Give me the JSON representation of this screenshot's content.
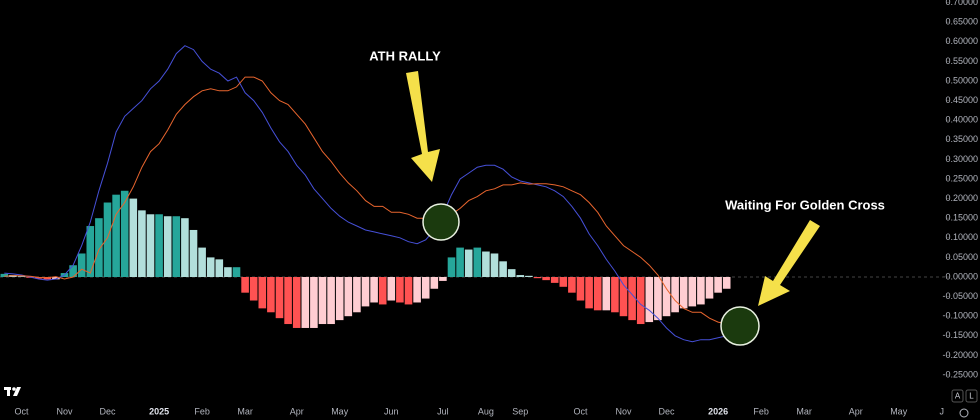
{
  "chart_data": {
    "type": "macd",
    "categories": [
      null,
      null,
      "Oct",
      null,
      null,
      null,
      null,
      "Nov",
      null,
      null,
      null,
      null,
      "Dec",
      null,
      null,
      null,
      null,
      null,
      "2025",
      null,
      null,
      null,
      null,
      "Feb",
      null,
      null,
      null,
      null,
      "Mar",
      null,
      null,
      null,
      null,
      null,
      "Apr",
      null,
      null,
      null,
      null,
      "May",
      null,
      null,
      null,
      null,
      null,
      "Jun",
      null,
      null,
      null,
      null,
      null,
      "Jul",
      null,
      null,
      null,
      null,
      "Aug",
      null,
      null,
      null,
      "Sep",
      null,
      null,
      null,
      null,
      null,
      null,
      "Oct",
      null,
      null,
      null,
      null,
      "Nov",
      null,
      null,
      null,
      null,
      "Dec",
      null,
      null,
      null,
      null,
      null,
      "2026",
      null,
      null,
      null,
      null,
      "Feb",
      null,
      null,
      null,
      null,
      "Mar",
      null,
      null,
      null,
      null,
      null,
      "Apr",
      null,
      null,
      null,
      null,
      "May",
      null,
      null,
      null,
      null,
      "J"
    ],
    "histogram": {
      "colors": [
        "#26a69a",
        "#b2dfdb",
        "#ff5252",
        "#ffcdd2"
      ],
      "values": [
        0.008,
        0.005,
        0.002,
        -0.002,
        -0.004,
        -0.006,
        -0.006,
        0.01,
        0.03,
        0.06,
        0.13,
        0.15,
        0.19,
        0.21,
        0.22,
        0.2,
        0.17,
        0.16,
        0.16,
        0.155,
        0.155,
        0.15,
        0.12,
        0.075,
        0.05,
        0.045,
        0.025,
        0.025,
        -0.04,
        -0.06,
        -0.08,
        -0.09,
        -0.105,
        -0.12,
        -0.13,
        -0.13,
        -0.13,
        -0.12,
        -0.12,
        -0.11,
        -0.1,
        -0.09,
        -0.075,
        -0.065,
        -0.07,
        -0.06,
        -0.065,
        -0.07,
        -0.065,
        -0.055,
        -0.03,
        -0.01,
        0.05,
        0.075,
        0.07,
        0.075,
        0.065,
        0.06,
        0.04,
        0.02,
        0.005,
        0.003,
        -0.003,
        -0.008,
        -0.015,
        -0.025,
        -0.04,
        -0.06,
        -0.08,
        -0.085,
        -0.085,
        -0.09,
        -0.1,
        -0.11,
        -0.12,
        -0.115,
        -0.11,
        -0.1,
        -0.09,
        -0.08,
        -0.075,
        -0.07,
        -0.055,
        -0.04,
        -0.03,
        null,
        null,
        null,
        null,
        null,
        null,
        null,
        null,
        null,
        null,
        null,
        null,
        null,
        null,
        null,
        null,
        null,
        null,
        null,
        null,
        null,
        null,
        null,
        null,
        null
      ]
    },
    "series": [
      {
        "color": "#4650d8",
        "values": [
          0.01,
          0.008,
          0.005,
          0,
          -0.005,
          -0.008,
          -0.005,
          0.005,
          0.03,
          0.08,
          0.14,
          0.22,
          0.29,
          0.37,
          0.41,
          0.43,
          0.45,
          0.48,
          0.5,
          0.53,
          0.57,
          0.59,
          0.58,
          0.55,
          0.53,
          0.52,
          0.5,
          0.51,
          0.47,
          0.45,
          0.42,
          0.38,
          0.345,
          0.32,
          0.285,
          0.26,
          0.225,
          0.2,
          0.175,
          0.155,
          0.14,
          0.13,
          0.12,
          0.115,
          0.11,
          0.105,
          0.1,
          0.09,
          0.085,
          0.095,
          0.12,
          0.16,
          0.21,
          0.25,
          0.265,
          0.28,
          0.285,
          0.285,
          0.275,
          0.255,
          0.245,
          0.24,
          0.235,
          0.23,
          0.22,
          0.205,
          0.18,
          0.15,
          0.11,
          0.08,
          0.045,
          0.015,
          -0.02,
          -0.045,
          -0.07,
          -0.085,
          -0.105,
          -0.13,
          -0.15,
          -0.16,
          -0.165,
          -0.16,
          -0.16,
          -0.155,
          -0.15,
          -0.145,
          null,
          null,
          null,
          null,
          null,
          null,
          null,
          null,
          null,
          null,
          null,
          null,
          null,
          null,
          null,
          null,
          null,
          null,
          null,
          null,
          null,
          null,
          null,
          null
        ]
      },
      {
        "color": "#e8652e",
        "values": [
          0.002,
          0.003,
          0.003,
          0.002,
          -0.001,
          -0.002,
          0.001,
          -0.005,
          0,
          0.02,
          0.01,
          0.07,
          0.1,
          0.16,
          0.19,
          0.23,
          0.28,
          0.32,
          0.34,
          0.375,
          0.415,
          0.44,
          0.46,
          0.475,
          0.48,
          0.475,
          0.475,
          0.485,
          0.51,
          0.51,
          0.5,
          0.47,
          0.45,
          0.44,
          0.415,
          0.39,
          0.355,
          0.32,
          0.295,
          0.265,
          0.24,
          0.22,
          0.195,
          0.18,
          0.18,
          0.165,
          0.165,
          0.16,
          0.15,
          0.15,
          0.15,
          0.17,
          0.16,
          0.175,
          0.195,
          0.205,
          0.22,
          0.225,
          0.235,
          0.235,
          0.24,
          0.237,
          0.238,
          0.238,
          0.235,
          0.23,
          0.22,
          0.21,
          0.19,
          0.165,
          0.13,
          0.105,
          0.08,
          0.065,
          0.05,
          0.03,
          0.005,
          -0.03,
          -0.06,
          -0.08,
          -0.09,
          -0.09,
          -0.105,
          -0.115,
          -0.12,
          -0.125,
          null,
          null,
          null,
          null,
          null,
          null,
          null,
          null,
          null,
          null,
          null,
          null,
          null,
          null,
          null,
          null,
          null,
          null,
          null,
          null,
          null,
          null,
          null,
          null
        ]
      }
    ],
    "ylim": [
      -0.3,
      0.7
    ],
    "yticks": [
      {
        "value": 0.7,
        "label": "0.70000"
      },
      {
        "value": 0.65,
        "label": "0.65000"
      },
      {
        "value": 0.6,
        "label": "0.60000"
      },
      {
        "value": 0.55,
        "label": "0.55000"
      },
      {
        "value": 0.5,
        "label": "0.50000"
      },
      {
        "value": 0.45,
        "label": "0.45000"
      },
      {
        "value": 0.4,
        "label": "0.40000"
      },
      {
        "value": 0.35,
        "label": "0.35000"
      },
      {
        "value": 0.3,
        "label": "0.30000"
      },
      {
        "value": 0.25,
        "label": "0.25000"
      },
      {
        "value": 0.2,
        "label": "0.20000"
      },
      {
        "value": 0.15,
        "label": "0.15000"
      },
      {
        "value": 0.1,
        "label": "0.10000"
      },
      {
        "value": 0.05,
        "label": "0.05000"
      },
      {
        "value": 0,
        "label": "-0.00000"
      },
      {
        "value": -0.05,
        "label": "-0.05000"
      },
      {
        "value": -0.1,
        "label": "-0.10000"
      },
      {
        "value": -0.15,
        "label": "-0.15000"
      },
      {
        "value": -0.2,
        "label": "-0.20000"
      },
      {
        "value": -0.25,
        "label": "-0.25000"
      }
    ],
    "annotations": [
      {
        "text": "ATH RALLY"
      },
      {
        "text": "Waiting For Golden Cross"
      }
    ],
    "controls": [
      "A",
      "L"
    ]
  }
}
